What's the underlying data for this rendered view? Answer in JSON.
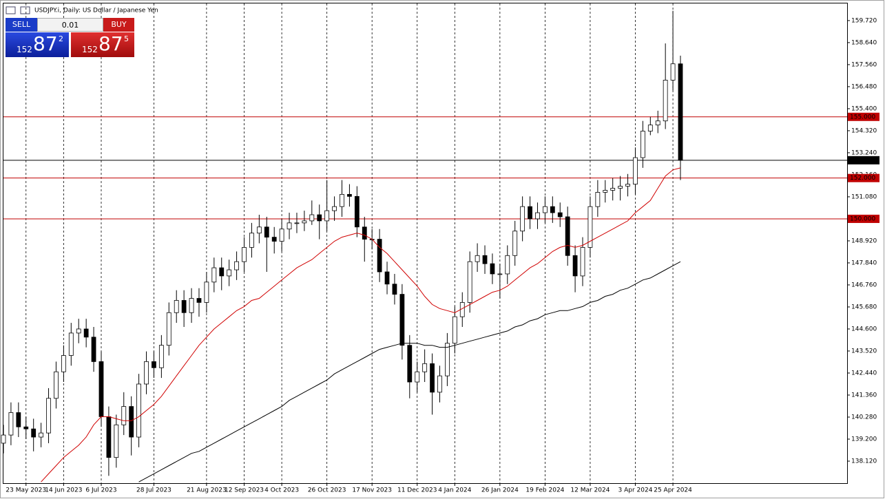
{
  "header": {
    "title": "USDJPY.i, Daily:  US Dollar / Japanese Yen"
  },
  "trade_panel": {
    "sell_label": "SELL",
    "buy_label": "BUY",
    "lot": "0.01",
    "sell_price": {
      "big": "152",
      "main": "87",
      "small": "2"
    },
    "buy_price": {
      "big": "152",
      "main": "87",
      "small": "5"
    }
  },
  "chart_data": {
    "type": "candlestick",
    "categories": [
      null,
      null,
      null,
      "23 May 2023",
      null,
      null,
      null,
      null,
      "14 Jun 2023",
      null,
      null,
      null,
      null,
      "6 Jul 2023",
      null,
      null,
      null,
      null,
      null,
      null,
      "28 Jul 2023",
      null,
      null,
      null,
      null,
      null,
      null,
      "21 Aug 2023",
      null,
      null,
      null,
      null,
      "12 Sep 2023",
      null,
      null,
      null,
      null,
      "4 Oct 2023",
      null,
      null,
      null,
      null,
      null,
      "26 Oct 2023",
      null,
      null,
      null,
      null,
      null,
      "17 Nov 2023",
      null,
      null,
      null,
      null,
      null,
      "11 Dec 2023",
      null,
      null,
      null,
      null,
      "4 Jan 2024",
      null,
      null,
      null,
      null,
      null,
      "26 Jan 2024",
      null,
      null,
      null,
      null,
      null,
      "19 Feb 2024",
      null,
      null,
      null,
      null,
      null,
      "12 Mar 2024",
      null,
      null,
      null,
      null,
      null,
      "3 Apr 2024",
      null,
      null,
      null,
      null,
      "25 Apr 2024",
      null
    ],
    "open": [
      139.0,
      139.4,
      140.5,
      139.8,
      139.7,
      139.3,
      139.5,
      141.2,
      142.5,
      143.3,
      144.4,
      144.6,
      144.2,
      143.0,
      140.3,
      138.3,
      139.9,
      140.8,
      139.3,
      141.9,
      143.0,
      142.7,
      143.8,
      145.4,
      146.0,
      145.4,
      146.1,
      145.9,
      146.9,
      147.6,
      147.2,
      147.5,
      147.9,
      148.6,
      149.3,
      149.6,
      149.1,
      148.9,
      149.5,
      149.8,
      149.8,
      149.9,
      150.2,
      149.9,
      150.4,
      150.6,
      151.2,
      151.1,
      149.6,
      149.0,
      149.0,
      147.4,
      146.8,
      146.3,
      143.8,
      142.0,
      142.5,
      142.9,
      141.5,
      142.3,
      143.9,
      145.2,
      145.9,
      147.9,
      148.2,
      147.8,
      147.3,
      147.3,
      148.2,
      149.4,
      150.6,
      150.0,
      150.3,
      150.6,
      150.3,
      150.1,
      148.2,
      147.2,
      148.6,
      150.6,
      151.3,
      151.4,
      151.5,
      151.6,
      151.7,
      153.0,
      154.3,
      154.6,
      154.8,
      156.8,
      157.6
    ],
    "high": [
      139.9,
      141.0,
      141.0,
      140.3,
      140.2,
      140.0,
      141.7,
      143.0,
      143.8,
      144.9,
      145.1,
      145.1,
      144.7,
      143.5,
      140.8,
      140.4,
      141.5,
      141.3,
      142.4,
      143.5,
      143.5,
      144.3,
      145.9,
      146.5,
      146.5,
      146.6,
      146.6,
      147.4,
      148.1,
      148.1,
      148.0,
      148.4,
      149.1,
      149.8,
      150.2,
      150.1,
      149.6,
      150.0,
      150.3,
      150.3,
      150.4,
      150.9,
      150.7,
      151.9,
      151.1,
      151.9,
      151.7,
      151.6,
      150.1,
      149.5,
      149.5,
      147.9,
      147.3,
      146.8,
      144.3,
      143.0,
      143.6,
      143.4,
      142.8,
      144.4,
      145.7,
      146.4,
      148.4,
      148.8,
      148.7,
      148.3,
      147.8,
      148.7,
      149.9,
      151.1,
      151.1,
      150.8,
      151.1,
      151.1,
      150.8,
      150.6,
      148.7,
      149.1,
      151.1,
      151.9,
      151.9,
      152.0,
      152.1,
      152.2,
      153.5,
      154.8,
      155.0,
      155.3,
      158.6,
      160.2,
      158.0
    ],
    "low": [
      138.5,
      138.9,
      139.3,
      139.2,
      138.6,
      138.8,
      139.0,
      140.7,
      142.0,
      142.8,
      143.9,
      143.7,
      142.5,
      139.8,
      137.4,
      137.8,
      139.4,
      138.4,
      138.8,
      141.4,
      142.2,
      142.2,
      143.3,
      144.9,
      144.7,
      144.9,
      145.2,
      145.4,
      146.4,
      146.5,
      146.7,
      147.0,
      147.4,
      148.1,
      148.8,
      147.4,
      148.3,
      148.4,
      149.0,
      149.3,
      149.4,
      149.7,
      149.0,
      149.4,
      149.9,
      150.1,
      150.6,
      149.1,
      147.9,
      148.5,
      146.9,
      146.3,
      145.8,
      143.1,
      141.2,
      141.5,
      142.0,
      140.4,
      141.0,
      141.8,
      143.4,
      144.7,
      145.4,
      147.4,
      147.3,
      146.8,
      146.1,
      146.8,
      147.7,
      148.9,
      149.5,
      149.5,
      149.8,
      149.8,
      149.6,
      147.7,
      146.4,
      146.7,
      148.1,
      150.1,
      150.8,
      150.9,
      150.9,
      151.1,
      151.2,
      152.5,
      154.1,
      154.2,
      154.4,
      156.3,
      151.9
    ],
    "close": [
      139.4,
      140.5,
      139.8,
      139.7,
      139.3,
      139.5,
      141.2,
      142.5,
      143.3,
      144.4,
      144.6,
      144.2,
      143.0,
      140.3,
      138.3,
      139.9,
      140.8,
      139.3,
      141.9,
      143.0,
      142.7,
      143.8,
      145.4,
      146.0,
      145.4,
      146.1,
      145.9,
      146.9,
      147.6,
      147.2,
      147.5,
      147.9,
      148.6,
      149.3,
      149.6,
      149.1,
      148.9,
      149.5,
      149.8,
      149.8,
      149.9,
      150.2,
      149.9,
      150.4,
      150.6,
      151.2,
      151.1,
      149.6,
      149.0,
      149.0,
      147.4,
      146.8,
      146.3,
      143.8,
      142.0,
      142.5,
      142.9,
      141.5,
      142.3,
      143.9,
      145.2,
      145.9,
      147.9,
      148.2,
      147.8,
      147.3,
      147.3,
      148.2,
      149.4,
      150.6,
      150.0,
      150.3,
      150.6,
      150.3,
      150.1,
      148.2,
      147.2,
      148.6,
      150.6,
      151.3,
      151.4,
      151.5,
      151.6,
      151.7,
      153.0,
      154.3,
      154.6,
      154.8,
      156.8,
      157.6,
      152.872
    ],
    "moving_averages": [
      {
        "color": "#d00000",
        "values": [
          null,
          null,
          null,
          null,
          null,
          137.1,
          137.5,
          137.9,
          138.3,
          138.6,
          138.9,
          139.3,
          139.9,
          140.3,
          140.3,
          140.2,
          140.1,
          140.1,
          140.3,
          140.6,
          140.9,
          141.3,
          141.8,
          142.3,
          142.8,
          143.3,
          143.8,
          144.2,
          144.6,
          144.9,
          145.2,
          145.5,
          145.7,
          146.0,
          146.1,
          146.4,
          146.7,
          147.0,
          147.3,
          147.6,
          147.8,
          148.0,
          148.3,
          148.6,
          148.9,
          149.1,
          149.2,
          149.3,
          149.2,
          149.0,
          148.6,
          148.3,
          147.9,
          147.5,
          147.1,
          146.7,
          146.2,
          145.8,
          145.6,
          145.5,
          145.4,
          145.6,
          145.8,
          146.0,
          146.2,
          146.4,
          146.5,
          146.7,
          147.0,
          147.3,
          147.6,
          147.8,
          148.1,
          148.4,
          148.6,
          148.7,
          148.6,
          148.7,
          148.9,
          149.1,
          149.3,
          149.5,
          149.7,
          149.9,
          150.3,
          150.6,
          150.9,
          151.5,
          152.1,
          152.4,
          152.5
        ]
      },
      {
        "color": "#000000",
        "values": [
          null,
          null,
          null,
          null,
          null,
          null,
          null,
          null,
          null,
          null,
          null,
          null,
          null,
          null,
          null,
          null,
          null,
          null,
          137.1,
          137.3,
          137.5,
          137.7,
          137.9,
          138.1,
          138.3,
          138.5,
          138.6,
          138.8,
          139.0,
          139.2,
          139.4,
          139.6,
          139.8,
          140.0,
          140.2,
          140.4,
          140.6,
          140.8,
          141.1,
          141.3,
          141.5,
          141.7,
          141.9,
          142.1,
          142.4,
          142.6,
          142.8,
          143.0,
          143.2,
          143.4,
          143.6,
          143.7,
          143.8,
          143.9,
          143.9,
          143.9,
          143.8,
          143.8,
          143.7,
          143.7,
          143.8,
          143.9,
          144.0,
          144.1,
          144.2,
          144.3,
          144.4,
          144.5,
          144.7,
          144.8,
          145.0,
          145.1,
          145.3,
          145.4,
          145.5,
          145.5,
          145.6,
          145.7,
          145.9,
          146.0,
          146.2,
          146.3,
          146.5,
          146.6,
          146.8,
          147.0,
          147.1,
          147.3,
          147.5,
          147.7,
          147.9
        ]
      }
    ],
    "hlines": [
      {
        "value": 155,
        "label": "155.000",
        "color": "#c00000"
      },
      {
        "value": 152.872,
        "label": "152.872",
        "color": "#000000"
      },
      {
        "value": 152,
        "label": "152.000",
        "color": "#c00000"
      },
      {
        "value": 150,
        "label": "150.000",
        "color": "#c00000"
      }
    ],
    "bull_color": "#ffffff",
    "bear_color": "#000000",
    "ylim": [
      137.04,
      160.56
    ],
    "yticks": [
      {
        "value": 138.12,
        "label": "138.120"
      },
      {
        "value": 139.2,
        "label": "139.200"
      },
      {
        "value": 140.28,
        "label": "140.280"
      },
      {
        "value": 141.36,
        "label": "141.360"
      },
      {
        "value": 142.44,
        "label": "142.440"
      },
      {
        "value": 143.52,
        "label": "143.520"
      },
      {
        "value": 144.6,
        "label": "144.600"
      },
      {
        "value": 145.68,
        "label": "145.680"
      },
      {
        "value": 146.76,
        "label": "146.760"
      },
      {
        "value": 147.84,
        "label": "147.840"
      },
      {
        "value": 148.92,
        "label": "148.920"
      },
      {
        "value": 151.08,
        "label": "151.080"
      },
      {
        "value": 152.16,
        "label": "152.160"
      },
      {
        "value": 153.24,
        "label": "153.240"
      },
      {
        "value": 154.32,
        "label": "154.320"
      },
      {
        "value": 155.4,
        "label": "155.400"
      },
      {
        "value": 156.48,
        "label": "156.480"
      },
      {
        "value": 157.56,
        "label": "157.560"
      },
      {
        "value": 158.64,
        "label": "158.640"
      },
      {
        "value": 159.72,
        "label": "159.720"
      }
    ],
    "x_grid": true
  }
}
